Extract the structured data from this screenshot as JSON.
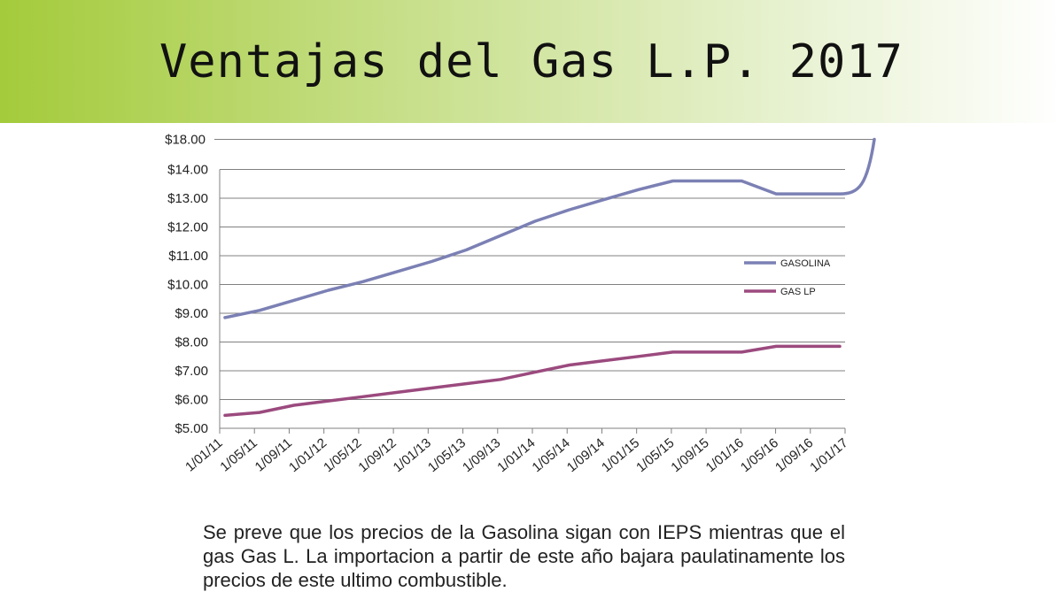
{
  "slide": {
    "title": "Ventajas del Gas L.P. 2017",
    "caption": "Se preve que los precios de la Gasolina sigan con IEPS mientras que el gas Gas L. La importacion a partir de este año bajara paulatinamente los precios de este ultimo combustible."
  },
  "colors": {
    "header_start": "#a4cb3b",
    "gasolina": "#7b80b4",
    "gaslp": "#9b4a7e",
    "grid": "#808080"
  },
  "chart_data": {
    "type": "line",
    "x": [
      "1/01/11",
      "1/05/11",
      "1/09/11",
      "1/01/12",
      "1/05/12",
      "1/09/12",
      "1/01/13",
      "1/05/13",
      "1/09/13",
      "1/01/14",
      "1/05/14",
      "1/09/14",
      "1/01/15",
      "1/05/15",
      "1/09/15",
      "1/01/16",
      "1/05/16",
      "1/09/16",
      "1/01/17"
    ],
    "ylim": [
      5,
      18
    ],
    "y_ticks": [
      "$5.00",
      "$6.00",
      "$7.00",
      "$8.00",
      "$9.00",
      "$10.00",
      "$11.00",
      "$12.00",
      "$13.00",
      "$14.00",
      "$18.00"
    ],
    "legend_position": "right",
    "grid": true,
    "series": [
      {
        "name": "GASOLINA",
        "values": [
          8.85,
          9.1,
          9.45,
          9.8,
          10.1,
          10.45,
          10.8,
          11.2,
          11.7,
          12.2,
          12.6,
          12.95,
          13.3,
          13.6,
          13.6,
          13.6,
          13.15,
          13.15,
          13.15
        ],
        "end_value": 18.0
      },
      {
        "name": "GAS LP",
        "values": [
          5.45,
          5.55,
          5.8,
          5.95,
          6.1,
          6.25,
          6.4,
          6.55,
          6.7,
          6.95,
          7.2,
          7.35,
          7.5,
          7.65,
          7.65,
          7.65,
          7.85,
          7.85,
          7.85
        ]
      }
    ]
  }
}
